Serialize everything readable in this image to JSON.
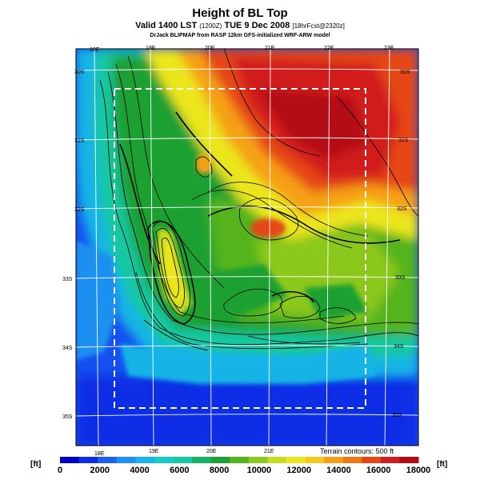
{
  "header": {
    "title": "Height of BL Top",
    "valid": "Valid 1400 LST",
    "valid_code": "(1200Z)",
    "date": "TUE 9 Dec 2008",
    "fcst": "[18hrFcst@2320z]",
    "subtitle": "DrJack BLIPMAP from RASP 12km GFS-initialized WRF-ARW model"
  },
  "map": {
    "lon_top": [
      "18E",
      "19E",
      "20E",
      "21E",
      "22E",
      "23E"
    ],
    "lon_bottom": [
      "18E",
      "19E",
      "20E",
      "21E"
    ],
    "lat_left": [
      "30S",
      "31S",
      "32S",
      "33S",
      "34S",
      "35S"
    ],
    "lat_right": [
      "30S",
      "31S",
      "32S",
      "33S",
      "34S",
      "35S"
    ],
    "contour_note": "Terrain contours: 500 ft"
  },
  "colorbar": {
    "unit_left": "[ft]",
    "unit_right": "[ft]",
    "labels": [
      "0",
      "2000",
      "4000",
      "6000",
      "8000",
      "10000",
      "12000",
      "14000",
      "16000",
      "18000"
    ],
    "colors": [
      "#0000c8",
      "#0a2ee6",
      "#1e5ef5",
      "#1e90f0",
      "#18b4e6",
      "#14cdc8",
      "#14c8a0",
      "#14b464",
      "#1ea032",
      "#55b41e",
      "#8cc81e",
      "#c8dc1e",
      "#ebe61e",
      "#f5c81e",
      "#f5a014",
      "#f07814",
      "#e64614",
      "#d21e1e",
      "#b40a14"
    ]
  }
}
